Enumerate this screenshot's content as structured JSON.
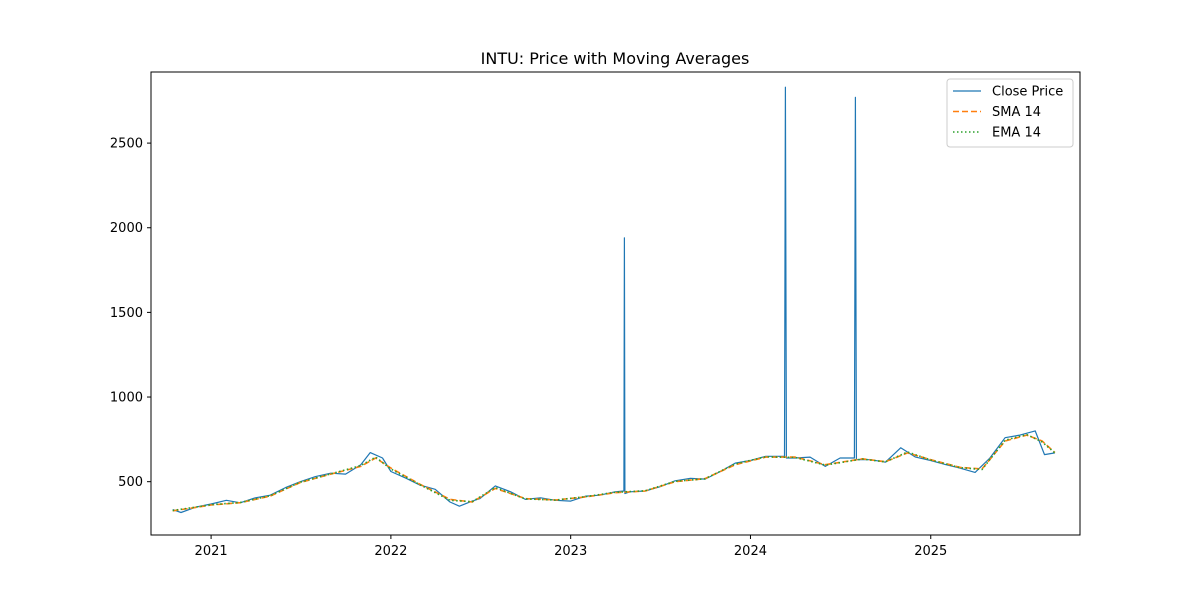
{
  "chart_data": {
    "type": "line",
    "title": "INTU: Price with Moving Averages",
    "xlabel": "",
    "ylabel": "",
    "x_ticks": [
      "2021",
      "2022",
      "2023",
      "2024",
      "2025"
    ],
    "y_ticks": [
      500,
      1000,
      1500,
      2000,
      2500
    ],
    "xlim": [
      "2020-09-01",
      "2025-10-31"
    ],
    "ylim": [
      185,
      2920
    ],
    "grid": false,
    "legend": {
      "position": "top-right",
      "entries": [
        "Close Price",
        "SMA 14",
        "EMA 14"
      ]
    },
    "series": [
      {
        "name": "Close Price",
        "style": "solid",
        "color": "#1f77b4",
        "points": [
          [
            "2020-10-15",
            335
          ],
          [
            "2020-11-01",
            318
          ],
          [
            "2020-12-01",
            350
          ],
          [
            "2021-01-01",
            368
          ],
          [
            "2021-02-01",
            390
          ],
          [
            "2021-03-01",
            375
          ],
          [
            "2021-04-01",
            405
          ],
          [
            "2021-05-01",
            420
          ],
          [
            "2021-06-01",
            465
          ],
          [
            "2021-07-01",
            500
          ],
          [
            "2021-08-01",
            530
          ],
          [
            "2021-09-01",
            550
          ],
          [
            "2021-10-01",
            545
          ],
          [
            "2021-11-01",
            600
          ],
          [
            "2021-11-20",
            672
          ],
          [
            "2021-12-15",
            640
          ],
          [
            "2022-01-01",
            560
          ],
          [
            "2022-02-01",
            520
          ],
          [
            "2022-03-01",
            480
          ],
          [
            "2022-04-01",
            455
          ],
          [
            "2022-05-01",
            380
          ],
          [
            "2022-05-20",
            355
          ],
          [
            "2022-06-15",
            385
          ],
          [
            "2022-07-01",
            400
          ],
          [
            "2022-08-01",
            475
          ],
          [
            "2022-09-01",
            440
          ],
          [
            "2022-10-01",
            395
          ],
          [
            "2022-11-01",
            405
          ],
          [
            "2022-12-01",
            390
          ],
          [
            "2023-01-01",
            385
          ],
          [
            "2023-02-01",
            415
          ],
          [
            "2023-03-01",
            420
          ],
          [
            "2023-04-01",
            440
          ],
          [
            "2023-04-19",
            445
          ],
          [
            "2023-04-20",
            1940
          ],
          [
            "2023-04-21",
            430
          ],
          [
            "2023-05-01",
            440
          ],
          [
            "2023-06-01",
            445
          ],
          [
            "2023-07-01",
            470
          ],
          [
            "2023-08-01",
            505
          ],
          [
            "2023-09-01",
            520
          ],
          [
            "2023-10-01",
            515
          ],
          [
            "2023-11-01",
            560
          ],
          [
            "2023-12-01",
            610
          ],
          [
            "2024-01-01",
            625
          ],
          [
            "2024-02-01",
            650
          ],
          [
            "2024-03-10",
            650
          ],
          [
            "2024-03-12",
            2830
          ],
          [
            "2024-03-14",
            640
          ],
          [
            "2024-04-01",
            640
          ],
          [
            "2024-05-01",
            645
          ],
          [
            "2024-06-01",
            590
          ],
          [
            "2024-07-01",
            640
          ],
          [
            "2024-07-30",
            640
          ],
          [
            "2024-08-01",
            2770
          ],
          [
            "2024-08-03",
            630
          ],
          [
            "2024-09-01",
            630
          ],
          [
            "2024-10-01",
            615
          ],
          [
            "2024-11-01",
            700
          ],
          [
            "2024-12-01",
            645
          ],
          [
            "2025-01-01",
            625
          ],
          [
            "2025-02-01",
            600
          ],
          [
            "2025-03-01",
            580
          ],
          [
            "2025-04-01",
            555
          ],
          [
            "2025-05-01",
            640
          ],
          [
            "2025-06-01",
            760
          ],
          [
            "2025-07-01",
            775
          ],
          [
            "2025-08-01",
            800
          ],
          [
            "2025-08-20",
            660
          ],
          [
            "2025-09-10",
            670
          ]
        ]
      },
      {
        "name": "SMA 14",
        "style": "dashed",
        "color": "#ff7f0e",
        "points": [
          [
            "2020-10-15",
            328
          ],
          [
            "2020-12-01",
            348
          ],
          [
            "2021-01-01",
            362
          ],
          [
            "2021-03-01",
            376
          ],
          [
            "2021-05-01",
            415
          ],
          [
            "2021-07-01",
            495
          ],
          [
            "2021-09-01",
            545
          ],
          [
            "2021-11-01",
            590
          ],
          [
            "2021-12-01",
            640
          ],
          [
            "2022-01-01",
            580
          ],
          [
            "2022-03-01",
            485
          ],
          [
            "2022-05-01",
            395
          ],
          [
            "2022-06-15",
            380
          ],
          [
            "2022-08-01",
            460
          ],
          [
            "2022-10-01",
            400
          ],
          [
            "2022-12-01",
            392
          ],
          [
            "2023-02-01",
            410
          ],
          [
            "2023-04-01",
            435
          ],
          [
            "2023-06-01",
            445
          ],
          [
            "2023-08-01",
            500
          ],
          [
            "2023-10-01",
            518
          ],
          [
            "2023-12-01",
            600
          ],
          [
            "2024-02-01",
            645
          ],
          [
            "2024-04-01",
            645
          ],
          [
            "2024-06-01",
            600
          ],
          [
            "2024-08-15",
            635
          ],
          [
            "2024-10-01",
            618
          ],
          [
            "2024-11-15",
            670
          ],
          [
            "2025-01-01",
            630
          ],
          [
            "2025-03-01",
            585
          ],
          [
            "2025-04-15",
            575
          ],
          [
            "2025-06-01",
            740
          ],
          [
            "2025-07-15",
            775
          ],
          [
            "2025-08-15",
            740
          ],
          [
            "2025-09-10",
            672
          ]
        ]
      },
      {
        "name": "EMA 14",
        "style": "dotted",
        "color": "#2ca02c",
        "points": [
          [
            "2020-10-15",
            330
          ],
          [
            "2020-12-01",
            350
          ],
          [
            "2021-01-01",
            364
          ],
          [
            "2021-03-01",
            377
          ],
          [
            "2021-05-01",
            417
          ],
          [
            "2021-07-01",
            497
          ],
          [
            "2021-09-01",
            546
          ],
          [
            "2021-11-01",
            595
          ],
          [
            "2021-12-01",
            645
          ],
          [
            "2022-01-01",
            575
          ],
          [
            "2022-03-01",
            482
          ],
          [
            "2022-05-01",
            390
          ],
          [
            "2022-06-15",
            382
          ],
          [
            "2022-08-01",
            465
          ],
          [
            "2022-10-01",
            398
          ],
          [
            "2022-12-01",
            391
          ],
          [
            "2023-02-01",
            412
          ],
          [
            "2023-04-01",
            437
          ],
          [
            "2023-06-01",
            446
          ],
          [
            "2023-08-01",
            502
          ],
          [
            "2023-10-01",
            517
          ],
          [
            "2023-12-01",
            605
          ],
          [
            "2024-02-01",
            647
          ],
          [
            "2024-04-01",
            643
          ],
          [
            "2024-06-01",
            598
          ],
          [
            "2024-08-15",
            634
          ],
          [
            "2024-10-01",
            617
          ],
          [
            "2024-11-15",
            675
          ],
          [
            "2025-01-01",
            628
          ],
          [
            "2025-03-01",
            583
          ],
          [
            "2025-04-15",
            572
          ],
          [
            "2025-06-01",
            745
          ],
          [
            "2025-07-15",
            778
          ],
          [
            "2025-08-15",
            735
          ],
          [
            "2025-09-10",
            670
          ]
        ]
      }
    ]
  }
}
